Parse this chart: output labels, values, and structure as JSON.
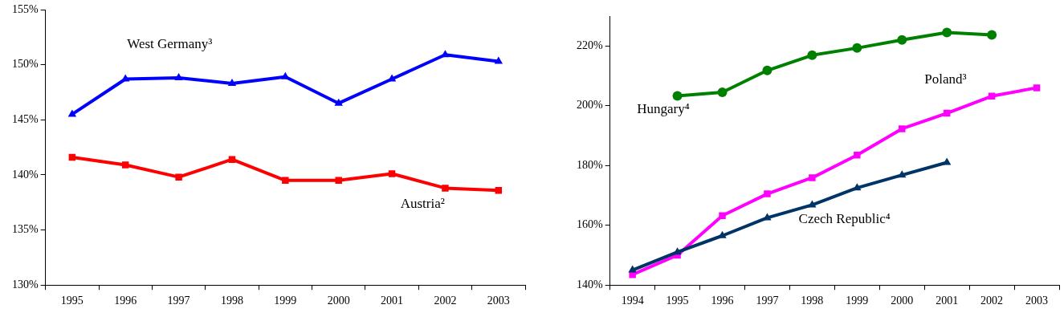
{
  "chart_data": [
    {
      "type": "line",
      "categories": [
        "1995",
        "1996",
        "1997",
        "1998",
        "1999",
        "2000",
        "2001",
        "2002",
        "2003"
      ],
      "ylim": [
        130,
        155
      ],
      "yticks": [
        {
          "value": 130,
          "label": "130%"
        },
        {
          "value": 135,
          "label": "135%"
        },
        {
          "value": 140,
          "label": "140%"
        },
        {
          "value": 145,
          "label": "145%"
        },
        {
          "value": 150,
          "label": "150%"
        },
        {
          "value": 155,
          "label": "155%"
        }
      ],
      "grid": false,
      "legend": false,
      "series": [
        {
          "name": "West Germany³",
          "color": "#0000ff",
          "marker": "triangle",
          "values": [
            145.5,
            148.7,
            148.8,
            148.3,
            148.9,
            146.5,
            148.7,
            150.9,
            150.3
          ]
        },
        {
          "name": "Austria²",
          "color": "#ff0000",
          "marker": "square",
          "values": [
            141.6,
            140.9,
            139.8,
            141.4,
            139.5,
            139.5,
            140.1,
            138.8,
            138.6
          ]
        }
      ]
    },
    {
      "type": "line",
      "categories": [
        "1994",
        "1995",
        "1996",
        "1997",
        "1998",
        "1999",
        "2000",
        "2001",
        "2002",
        "2003"
      ],
      "ylim": [
        140,
        230
      ],
      "yticks": [
        {
          "value": 140,
          "label": "140%"
        },
        {
          "value": 160,
          "label": "160%"
        },
        {
          "value": 180,
          "label": "180%"
        },
        {
          "value": 200,
          "label": "200%"
        },
        {
          "value": 220,
          "label": "220%"
        }
      ],
      "grid": false,
      "legend": false,
      "series": [
        {
          "name": "Hungary⁴",
          "color": "#008000",
          "marker": "circle",
          "values": [
            null,
            203.3,
            204.5,
            211.8,
            216.9,
            219.3,
            222.0,
            224.5,
            223.7,
            null
          ]
        },
        {
          "name": "Poland³",
          "color": "#ff00ff",
          "marker": "square",
          "values": [
            143.5,
            150.0,
            163.2,
            170.5,
            175.9,
            183.5,
            192.3,
            197.5,
            203.2,
            206.0
          ]
        },
        {
          "name": "Czech Republic⁴",
          "color": "#003366",
          "marker": "triangle",
          "values": [
            145.0,
            151.0,
            156.5,
            162.5,
            166.8,
            172.5,
            176.8,
            181.0,
            null,
            null
          ]
        }
      ]
    }
  ]
}
